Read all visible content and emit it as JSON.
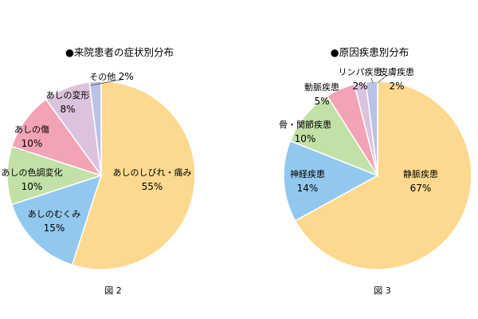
{
  "chart_data": [
    {
      "type": "pie",
      "title": "●来院患者の症状別分布",
      "caption": "図 2",
      "slices": [
        {
          "label": "あしのしびれ・痛み",
          "value": 55,
          "display": "55%",
          "color": "#fcd98e"
        },
        {
          "label": "あしのむくみ",
          "value": 15,
          "display": "15%",
          "color": "#93c8ee"
        },
        {
          "label": "あしの色調変化",
          "value": 10,
          "display": "10%",
          "color": "#c2e0a7"
        },
        {
          "label": "あしの傷",
          "value": 10,
          "display": "10%",
          "color": "#f2a3b5"
        },
        {
          "label": "あしの変形",
          "value": 8,
          "display": "8%",
          "color": "#dcc3dd"
        },
        {
          "label": "その他",
          "value": 2,
          "display": "2%",
          "color": "#b8c2e6"
        }
      ]
    },
    {
      "type": "pie",
      "title": "●原因疾患別分布",
      "caption": "図 3",
      "slices": [
        {
          "label": "静脈疾患",
          "value": 67,
          "display": "67%",
          "color": "#fcd98e"
        },
        {
          "label": "神経疾患",
          "value": 14,
          "display": "14%",
          "color": "#93c8ee"
        },
        {
          "label": "骨・関節疾患",
          "value": 10,
          "display": "10%",
          "color": "#c2e0a7"
        },
        {
          "label": "動脈疾患",
          "value": 5,
          "display": "5%",
          "color": "#f2a3b5"
        },
        {
          "label": "リンパ疾患",
          "value": 2,
          "display": "2%",
          "color": "#dcc3dd"
        },
        {
          "label": "皮膚疾患",
          "value": 2,
          "display": "2%",
          "color": "#b8c2e6"
        }
      ]
    }
  ]
}
